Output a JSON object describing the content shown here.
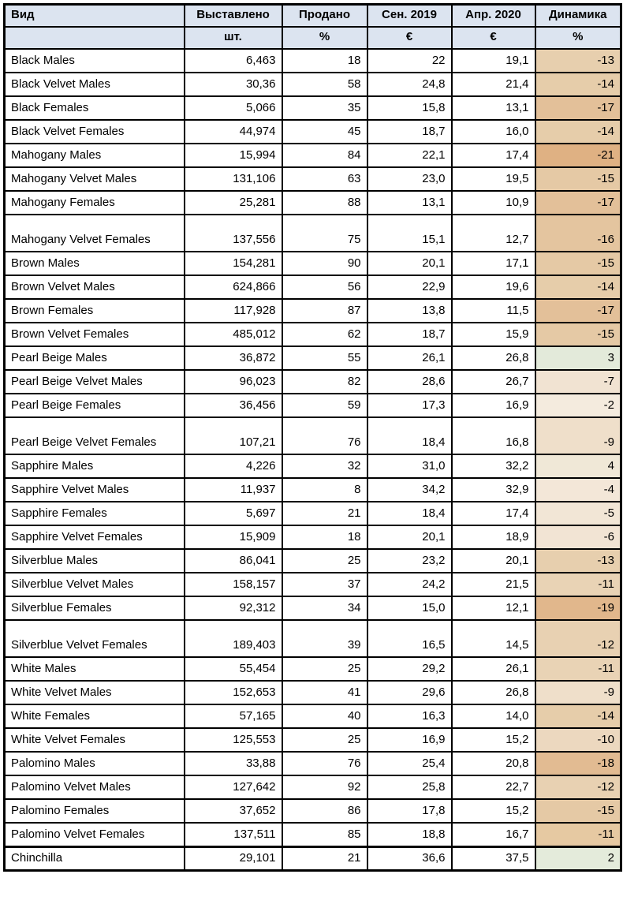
{
  "table": {
    "headers": {
      "type": "Вид",
      "offered": "Выставлено",
      "sold": "Продано",
      "sep2019": "Сен. 2019",
      "apr2020": "Апр. 2020",
      "dynamics": "Динамика"
    },
    "units": {
      "offered": "шт.",
      "sold": "%",
      "sep2019": "€",
      "apr2020": "€",
      "dynamics": "%"
    },
    "colors": {
      "header_bg": "#dce4f0",
      "border": "#000000",
      "positive_bg": "#e4ebdb",
      "negative_max_bg": "#dfb183"
    },
    "rows": [
      {
        "name": "Black Males",
        "offered": "6,463",
        "sold": "18",
        "sep2019": "22",
        "apr2020": "19,1",
        "dynamics": "-13",
        "dyn_color": "#e7cfae"
      },
      {
        "name": "Black Velvet Males",
        "offered": "30,36",
        "sold": "58",
        "sep2019": "24,8",
        "apr2020": "21,4",
        "dynamics": "-14",
        "dyn_color": "#e6cdaa"
      },
      {
        "name": "Black Females",
        "offered": "5,066",
        "sold": "35",
        "sep2019": "15,8",
        "apr2020": "13,1",
        "dynamics": "-17",
        "dyn_color": "#e3c099"
      },
      {
        "name": "Black Velvet Females",
        "offered": "44,974",
        "sold": "45",
        "sep2019": "18,7",
        "apr2020": "16,0",
        "dynamics": "-14",
        "dyn_color": "#e6cdaa"
      },
      {
        "name": "Mahogany Males",
        "offered": "15,994",
        "sold": "84",
        "sep2019": "22,1",
        "apr2020": "17,4",
        "dynamics": "-21",
        "dyn_color": "#dfb183"
      },
      {
        "name": "Mahogany Velvet Males",
        "offered": "131,106",
        "sold": "63",
        "sep2019": "23,0",
        "apr2020": "19,5",
        "dynamics": "-15",
        "dyn_color": "#e5c9a5"
      },
      {
        "name": "Mahogany Females",
        "offered": "25,281",
        "sold": "88",
        "sep2019": "13,1",
        "apr2020": "10,9",
        "dynamics": "-17",
        "dyn_color": "#e3c099"
      },
      {
        "name": "Mahogany Velvet Females",
        "offered": "137,556",
        "sold": "75",
        "sep2019": "15,1",
        "apr2020": "12,7",
        "dynamics": "-16",
        "dyn_color": "#e4c59f",
        "tall": true
      },
      {
        "name": "Brown Males",
        "offered": "154,281",
        "sold": "90",
        "sep2019": "20,1",
        "apr2020": "17,1",
        "dynamics": "-15",
        "dyn_color": "#e5c9a5"
      },
      {
        "name": "Brown Velvet Males",
        "offered": "624,866",
        "sold": "56",
        "sep2019": "22,9",
        "apr2020": "19,6",
        "dynamics": "-14",
        "dyn_color": "#e6cdaa"
      },
      {
        "name": "Brown Females",
        "offered": "117,928",
        "sold": "87",
        "sep2019": "13,8",
        "apr2020": "11,5",
        "dynamics": "-17",
        "dyn_color": "#e3c099"
      },
      {
        "name": "Brown Velvet Females",
        "offered": "485,012",
        "sold": "62",
        "sep2019": "18,7",
        "apr2020": "15,9",
        "dynamics": "-15",
        "dyn_color": "#e5c9a5"
      },
      {
        "name": "Pearl Beige Males",
        "offered": "36,872",
        "sold": "55",
        "sep2019": "26,1",
        "apr2020": "26,8",
        "dynamics": "3",
        "dyn_color": "#e3eada"
      },
      {
        "name": "Pearl Beige Velvet Males",
        "offered": "96,023",
        "sold": "82",
        "sep2019": "28,6",
        "apr2020": "26,7",
        "dynamics": "-7",
        "dyn_color": "#f1e3d2"
      },
      {
        "name": "Pearl Beige Females",
        "offered": "36,456",
        "sold": "59",
        "sep2019": "17,3",
        "apr2020": "16,9",
        "dynamics": "-2",
        "dyn_color": "#f4ebde"
      },
      {
        "name": "Pearl Beige Velvet Females",
        "offered": "107,21",
        "sold": "76",
        "sep2019": "18,4",
        "apr2020": "16,8",
        "dynamics": "-9",
        "dyn_color": "#efdfca",
        "tall": true
      },
      {
        "name": "Sapphire Males",
        "offered": "4,226",
        "sold": "32",
        "sep2019": "31,0",
        "apr2020": "32,2",
        "dynamics": "4",
        "dyn_color": "#f0e8d7"
      },
      {
        "name": "Sapphire Velvet Males",
        "offered": "11,937",
        "sold": "8",
        "sep2019": "34,2",
        "apr2020": "32,9",
        "dynamics": "-4",
        "dyn_color": "#f3e7d8"
      },
      {
        "name": "Sapphire Females",
        "offered": "5,697",
        "sold": "21",
        "sep2019": "18,4",
        "apr2020": "17,4",
        "dynamics": "-5",
        "dyn_color": "#f2e6d6"
      },
      {
        "name": "Sapphire Velvet Females",
        "offered": "15,909",
        "sold": "18",
        "sep2019": "20,1",
        "apr2020": "18,9",
        "dynamics": "-6",
        "dyn_color": "#f2e4d4"
      },
      {
        "name": "Silverblue Males",
        "offered": "86,041",
        "sold": "25",
        "sep2019": "23,2",
        "apr2020": "20,1",
        "dynamics": "-13",
        "dyn_color": "#e7cfae"
      },
      {
        "name": "Silverblue Velvet Males",
        "offered": "158,157",
        "sold": "37",
        "sep2019": "24,2",
        "apr2020": "21,5",
        "dynamics": "-11",
        "dyn_color": "#e9d3b5"
      },
      {
        "name": "Silverblue Females",
        "offered": "92,312",
        "sold": "34",
        "sep2019": "15,0",
        "apr2020": "12,1",
        "dynamics": "-19",
        "dyn_color": "#e1b78c"
      },
      {
        "name": "Silverblue Velvet Females",
        "offered": "189,403",
        "sold": "39",
        "sep2019": "16,5",
        "apr2020": "14,5",
        "dynamics": "-12",
        "dyn_color": "#e8d1b2",
        "tall": true
      },
      {
        "name": "White Males",
        "offered": "55,454",
        "sold": "25",
        "sep2019": "29,2",
        "apr2020": "26,1",
        "dynamics": "-11",
        "dyn_color": "#e9d3b5"
      },
      {
        "name": "White Velvet Males",
        "offered": "152,653",
        "sold": "41",
        "sep2019": "29,6",
        "apr2020": "26,8",
        "dynamics": "-9",
        "dyn_color": "#efdfca"
      },
      {
        "name": "White Females",
        "offered": "57,165",
        "sold": "40",
        "sep2019": "16,3",
        "apr2020": "14,0",
        "dynamics": "-14",
        "dyn_color": "#e6cdaa"
      },
      {
        "name": "White Velvet Females",
        "offered": "125,553",
        "sold": "25",
        "sep2019": "16,9",
        "apr2020": "15,2",
        "dynamics": "-10",
        "dyn_color": "#ecd8bf"
      },
      {
        "name": "Palomino Males",
        "offered": "33,88",
        "sold": "76",
        "sep2019": "25,4",
        "apr2020": "20,8",
        "dynamics": "-18",
        "dyn_color": "#e2bb92"
      },
      {
        "name": "Palomino Velvet Males",
        "offered": "127,642",
        "sold": "92",
        "sep2019": "25,8",
        "apr2020": "22,7",
        "dynamics": "-12",
        "dyn_color": "#e8d1b2"
      },
      {
        "name": "Palomino Females",
        "offered": "37,652",
        "sold": "86",
        "sep2019": "17,8",
        "apr2020": "15,2",
        "dynamics": "-15",
        "dyn_color": "#e5c9a5"
      },
      {
        "name": "Palomino Velvet Females",
        "offered": "137,511",
        "sold": "85",
        "sep2019": "18,8",
        "apr2020": "16,7",
        "dynamics": "-11",
        "dyn_color": "#e6c9a2"
      },
      {
        "name": "Chinchilla",
        "offered": "29,101",
        "sold": "21",
        "sep2019": "36,6",
        "apr2020": "37,5",
        "dynamics": "2",
        "dyn_color": "#e4ebdb",
        "thick_top": true
      }
    ]
  }
}
